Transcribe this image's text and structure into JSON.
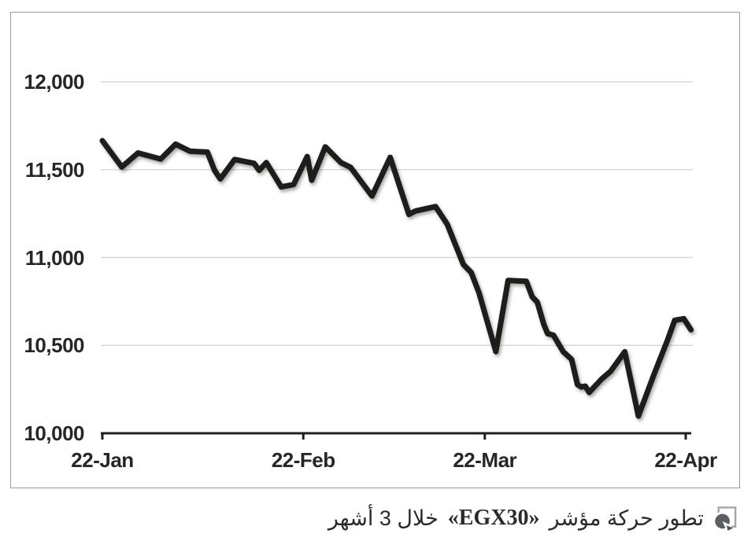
{
  "page": {
    "background": "#ffffff"
  },
  "chart_data": {
    "type": "line",
    "title": "",
    "xlabel": "",
    "ylabel": "",
    "legend": "none",
    "grid": {
      "horizontal": true,
      "vertical": false,
      "color": "#d9d9d9"
    },
    "line_color": "#1d1d1b",
    "line_width": 7,
    "axis_color": "#1f1f1f",
    "y_axis": {
      "range": [
        10000,
        12000
      ],
      "ticks": [
        {
          "value": 12000,
          "label": "12,000"
        },
        {
          "value": 11500,
          "label": "11,500"
        },
        {
          "value": 11000,
          "label": "11,000"
        },
        {
          "value": 10500,
          "label": "10,500"
        },
        {
          "value": 10000,
          "label": "10,000"
        }
      ]
    },
    "x_axis": {
      "range_days": [
        0,
        90
      ],
      "ticks": [
        {
          "day": 0,
          "label": "22-Jan"
        },
        {
          "day": 31,
          "label": "22-Feb"
        },
        {
          "day": 59,
          "label": "22-Mar"
        },
        {
          "day": 90,
          "label": "22-Apr"
        }
      ]
    },
    "series": [
      {
        "name": "EGX30",
        "points_day_value": [
          [
            0,
            11665
          ],
          [
            3,
            11515
          ],
          [
            5.5,
            11595
          ],
          [
            9,
            11560
          ],
          [
            11.3,
            11645
          ],
          [
            13.5,
            11605
          ],
          [
            16.2,
            11600
          ],
          [
            17.3,
            11497
          ],
          [
            18.2,
            11447
          ],
          [
            20.4,
            11558
          ],
          [
            23.4,
            11536
          ],
          [
            24.2,
            11496
          ],
          [
            25.3,
            11540
          ],
          [
            27.6,
            11402
          ],
          [
            29.5,
            11415
          ],
          [
            31.6,
            11575
          ],
          [
            32.3,
            11440
          ],
          [
            34.4,
            11630
          ],
          [
            36.8,
            11540
          ],
          [
            38.3,
            11513
          ],
          [
            41.6,
            11350
          ],
          [
            44.4,
            11570
          ],
          [
            47.3,
            11245
          ],
          [
            48.3,
            11265
          ],
          [
            51.4,
            11290
          ],
          [
            53.2,
            11190
          ],
          [
            55.7,
            10960
          ],
          [
            56.9,
            10915
          ],
          [
            58.1,
            10800
          ],
          [
            60.7,
            10465
          ],
          [
            62.6,
            10870
          ],
          [
            65.4,
            10865
          ],
          [
            66.3,
            10777
          ],
          [
            67.1,
            10746
          ],
          [
            68.1,
            10620
          ],
          [
            68.7,
            10567
          ],
          [
            69.6,
            10558
          ],
          [
            71.1,
            10464
          ],
          [
            72.4,
            10420
          ],
          [
            73.3,
            10277
          ],
          [
            73.9,
            10263
          ],
          [
            74.5,
            10268
          ],
          [
            75.1,
            10232
          ],
          [
            75.9,
            10264
          ],
          [
            77,
            10308
          ],
          [
            78.4,
            10352
          ],
          [
            80.6,
            10464
          ],
          [
            82.7,
            10098
          ],
          [
            85.1,
            10335
          ],
          [
            87.2,
            10530
          ],
          [
            88.3,
            10643
          ],
          [
            89.7,
            10652
          ],
          [
            90.8,
            10589
          ]
        ]
      }
    ]
  },
  "caption": {
    "prefix": "تطور حركة مؤشر",
    "ticker": "«EGX30»",
    "suffix": "خلال 3 أشهر"
  },
  "icons": {
    "caption_bullet": "pie-chart-arrow-icon"
  },
  "colors": {
    "frame_border": "#9b9b9b",
    "grid": "#d9d9d9",
    "line": "#1d1d1b",
    "text": "#262626",
    "icon_dark": "#5c5f62",
    "icon_frame": "#a8a8a8"
  }
}
